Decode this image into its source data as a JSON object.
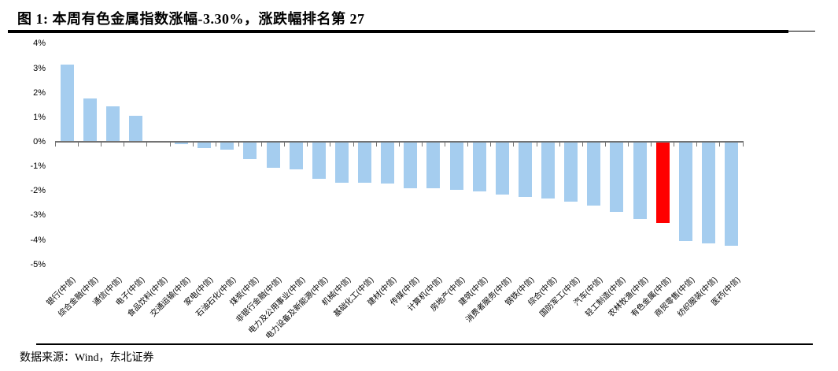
{
  "header": {
    "title": "图 1: 本周有色金属指数涨幅-3.30%，涨跌幅排名第 27"
  },
  "footer": {
    "source_label": "数据来源：Wind，东北证券"
  },
  "chart_data": {
    "type": "bar",
    "title": "本周有色金属指数涨幅-3.30%，涨跌幅排名第 27",
    "xlabel": "",
    "ylabel": "",
    "ylim": [
      -5,
      4
    ],
    "grid": false,
    "legend_position": "none",
    "y_tick_labels": [
      "4%",
      "3%",
      "2%",
      "1%",
      "0%",
      "-1%",
      "-2%",
      "-3%",
      "-4%",
      "-5%"
    ],
    "y_tick_values": [
      4,
      3,
      2,
      1,
      0,
      -1,
      -2,
      -3,
      -4,
      -5
    ],
    "categories": [
      "银行(中信)",
      "综合金融(中信)",
      "通信(中信)",
      "电子(中信)",
      "食品饮料(中信)",
      "交通运输(中信)",
      "家电(中信)",
      "石油石化(中信)",
      "煤炭(中信)",
      "非银行金融(中信)",
      "电力及公用事业(中信)",
      "电力设备及新能源(中信)",
      "机械(中信)",
      "基础化工(中信)",
      "建材(中信)",
      "传媒(中信)",
      "计算机(中信)",
      "房地产(中信)",
      "建筑(中信)",
      "消费者服务(中信)",
      "钢铁(中信)",
      "综合(中信)",
      "国防军工(中信)",
      "汽车(中信)",
      "轻工制造(中信)",
      "农林牧渔(中信)",
      "有色金属(中信)",
      "商贸零售(中信)",
      "纺织服装(中信)",
      "医药(中信)"
    ],
    "values": [
      3.15,
      1.77,
      1.45,
      1.07,
      -0.02,
      -0.1,
      -0.26,
      -0.33,
      -0.7,
      -1.07,
      -1.12,
      -1.52,
      -1.66,
      -1.67,
      -1.71,
      -1.88,
      -1.9,
      -1.96,
      -2.01,
      -2.16,
      -2.25,
      -2.32,
      -2.44,
      -2.6,
      -2.86,
      -3.15,
      -3.3,
      -4.05,
      -4.15,
      -4.25
    ],
    "highlight_index": 26,
    "highlight_label": "有色金属(中信)",
    "highlight_value": -3.3,
    "bar_color": "#A5CDEF",
    "highlight_color": "#FF0000",
    "axis_color": "#737373"
  }
}
